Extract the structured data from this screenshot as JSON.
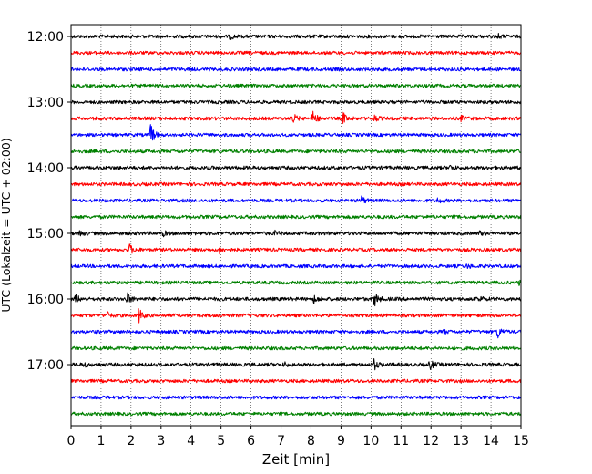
{
  "chart_data": {
    "type": "line",
    "subtype": "helicorder",
    "title": "",
    "xlabel": "Zeit  [min]",
    "ylabel": "UTC (Lokalzeit = UTC + 02:00)",
    "xlim": [
      0,
      15
    ],
    "x_ticks": [
      0,
      1,
      2,
      3,
      4,
      5,
      6,
      7,
      8,
      9,
      10,
      11,
      12,
      13,
      14,
      15
    ],
    "x_tick_labels": [
      "0",
      "1",
      "2",
      "3",
      "4",
      "5",
      "6",
      "7",
      "8",
      "9",
      "10",
      "11",
      "12",
      "13",
      "14",
      "15"
    ],
    "y_tick_labels": [
      "12:00",
      "13:00",
      "14:00",
      "15:00",
      "16:00",
      "17:00"
    ],
    "y_tick_rows": [
      0,
      4,
      8,
      12,
      16,
      20
    ],
    "trace_interval_min": 15,
    "grid": "vertical dotted lines at each minute",
    "trace_colors": [
      "#000000",
      "#ff0000",
      "#0000ff",
      "#008000"
    ],
    "trace_start_times": [
      "12:00",
      "12:15",
      "12:30",
      "12:45",
      "13:00",
      "13:15",
      "13:30",
      "13:45",
      "14:00",
      "14:15",
      "14:30",
      "14:45",
      "15:00",
      "15:15",
      "15:30",
      "15:45",
      "16:00",
      "16:15",
      "16:30",
      "16:45",
      "17:00",
      "17:15",
      "17:30",
      "17:45"
    ],
    "noise_level": [
      0.55,
      0.5,
      0.55,
      0.5,
      0.5,
      0.55,
      0.5,
      0.55,
      0.6,
      0.55,
      0.5,
      0.55,
      0.6,
      0.5,
      0.55,
      0.5,
      0.6,
      0.55,
      0.5,
      0.55,
      0.6,
      0.5,
      0.5,
      0.5
    ],
    "events": [
      {
        "row": 0,
        "t": 5.3,
        "amp": 0.6
      },
      {
        "row": 0,
        "t": 14.2,
        "amp": 0.7
      },
      {
        "row": 5,
        "t": 7.4,
        "amp": 1.2
      },
      {
        "row": 5,
        "t": 8.05,
        "amp": 2.4
      },
      {
        "row": 5,
        "t": 9.05,
        "amp": 1.7
      },
      {
        "row": 5,
        "t": 10.1,
        "amp": 1.0
      },
      {
        "row": 5,
        "t": 13.0,
        "amp": 0.6
      },
      {
        "row": 6,
        "t": 2.65,
        "amp": 3.0
      },
      {
        "row": 8,
        "t": 12.6,
        "amp": 0.6
      },
      {
        "row": 10,
        "t": 9.65,
        "amp": 1.4
      },
      {
        "row": 10,
        "t": 12.2,
        "amp": 0.7
      },
      {
        "row": 12,
        "t": 0.3,
        "amp": 0.6
      },
      {
        "row": 12,
        "t": 3.05,
        "amp": 0.7
      },
      {
        "row": 12,
        "t": 6.8,
        "amp": 0.5
      },
      {
        "row": 12,
        "t": 13.6,
        "amp": 0.6
      },
      {
        "row": 13,
        "t": 1.95,
        "amp": 1.4
      },
      {
        "row": 13,
        "t": 4.95,
        "amp": 0.9
      },
      {
        "row": 14,
        "t": 13.2,
        "amp": 0.5
      },
      {
        "row": 15,
        "t": 14.95,
        "amp": 0.8
      },
      {
        "row": 16,
        "t": 0.15,
        "amp": 1.1
      },
      {
        "row": 16,
        "t": 1.85,
        "amp": 1.9
      },
      {
        "row": 16,
        "t": 8.1,
        "amp": 1.0
      },
      {
        "row": 16,
        "t": 10.1,
        "amp": 2.2
      },
      {
        "row": 16,
        "t": 13.6,
        "amp": 0.8
      },
      {
        "row": 17,
        "t": 1.2,
        "amp": 0.8
      },
      {
        "row": 17,
        "t": 2.25,
        "amp": 2.0
      },
      {
        "row": 18,
        "t": 14.2,
        "amp": 1.9
      },
      {
        "row": 18,
        "t": 12.4,
        "amp": 0.5
      },
      {
        "row": 20,
        "t": 10.1,
        "amp": 1.3
      },
      {
        "row": 20,
        "t": 11.95,
        "amp": 1.4
      },
      {
        "row": 20,
        "t": 7.1,
        "amp": 0.6
      },
      {
        "row": 20,
        "t": 0.4,
        "amp": 0.6
      }
    ]
  }
}
